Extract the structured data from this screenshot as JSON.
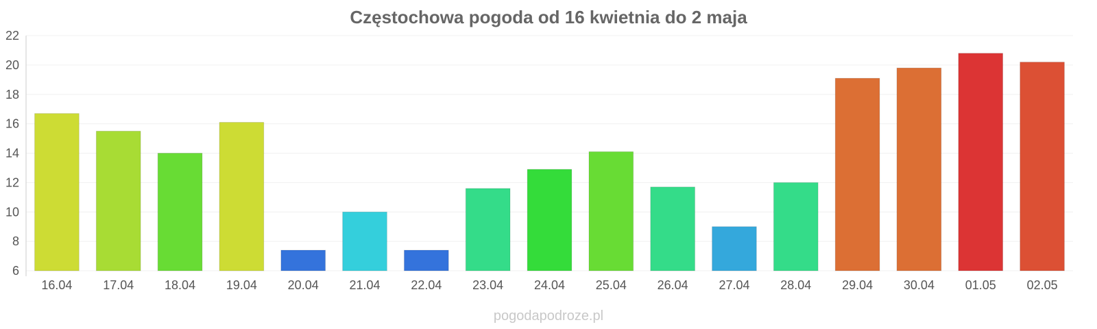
{
  "watermark": "pogodapodroze.pl",
  "chart_data": {
    "type": "bar",
    "title": "Częstochowa pogoda od 16 kwietnia do 2 maja",
    "xlabel": "",
    "ylabel": "",
    "ylim": [
      6,
      22
    ],
    "yticks": [
      6,
      8,
      10,
      12,
      14,
      16,
      18,
      20,
      22
    ],
    "grid": true,
    "categories": [
      "16.04",
      "17.04",
      "18.04",
      "19.04",
      "20.04",
      "21.04",
      "22.04",
      "23.04",
      "24.04",
      "25.04",
      "26.04",
      "27.04",
      "28.04",
      "29.04",
      "30.04",
      "01.05",
      "02.05"
    ],
    "values": [
      16.7,
      15.5,
      14.0,
      16.1,
      7.4,
      10.0,
      7.4,
      11.6,
      12.9,
      14.1,
      11.7,
      9.0,
      12.0,
      19.1,
      19.8,
      20.8,
      20.2
    ],
    "colors": [
      "#cddc34",
      "#a8dc34",
      "#68dc34",
      "#cddc34",
      "#3473dc",
      "#34cfdc",
      "#3473dc",
      "#34dc89",
      "#34dc3a",
      "#68dc34",
      "#34dc89",
      "#34a8dc",
      "#34dc89",
      "#dc6f34",
      "#dc6f34",
      "#dc3434",
      "#dc5034"
    ]
  }
}
